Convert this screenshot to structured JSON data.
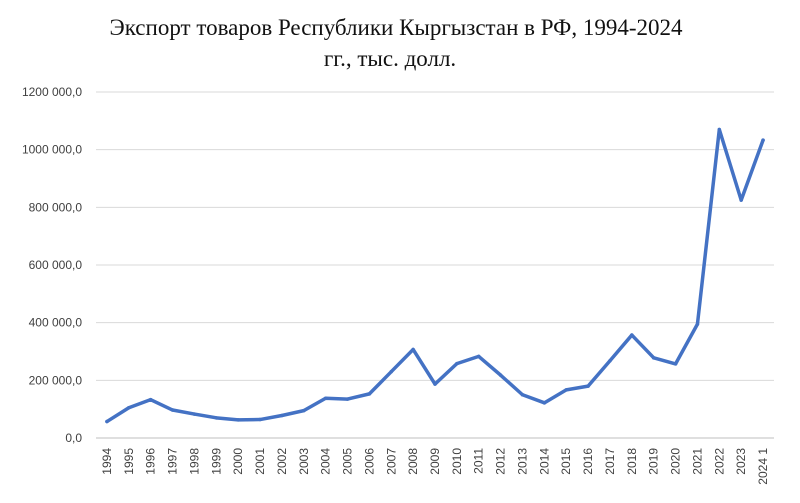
{
  "chart_data": {
    "type": "line",
    "title": "Экспорт товаров Республики Кыргызстан в РФ, 1994-2024",
    "subtitle": "гг., тыс. долл.",
    "xlabel": "",
    "ylabel": "",
    "categories": [
      "1994",
      "1995",
      "1996",
      "1997",
      "1998",
      "1999",
      "2000",
      "2001",
      "2002",
      "2003",
      "2004",
      "2005",
      "2006",
      "2007",
      "2008",
      "2009",
      "2010",
      "2011",
      "2012",
      "2013",
      "2014",
      "2015",
      "2016",
      "2017",
      "2018",
      "2019",
      "2020",
      "2021",
      "2022",
      "2023",
      "2024 1"
    ],
    "y_ticks": [
      "0,0",
      "200 000,0",
      "400 000,0",
      "600 000,0",
      "800 000,0",
      "1000 000,0",
      "1200 000,0"
    ],
    "ylim": [
      0,
      1200000
    ],
    "grid": "horizontal",
    "legend": "none",
    "series": [
      {
        "color": "#4472C4",
        "values": [
          57000,
          105000,
          133000,
          97000,
          83000,
          70000,
          63000,
          64000,
          78000,
          95000,
          138000,
          135000,
          153000,
          230000,
          307000,
          187000,
          258000,
          283000,
          218000,
          150000,
          122000,
          167000,
          180000,
          268000,
          357000,
          278000,
          257000,
          395000,
          1070000,
          825000,
          1033000
        ]
      }
    ]
  }
}
